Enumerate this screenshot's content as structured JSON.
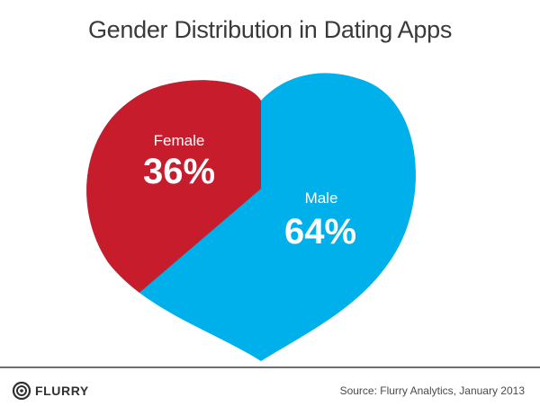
{
  "title": "Gender Distribution in Dating Apps",
  "chart_data": {
    "type": "pie",
    "shape": "heart",
    "title": "Gender Distribution in Dating Apps",
    "slices": [
      {
        "label": "Female",
        "value": 36,
        "display": "36%",
        "color": "#c71c2c"
      },
      {
        "label": "Male",
        "value": 64,
        "display": "64%",
        "color": "#00b0ea"
      }
    ]
  },
  "footer": {
    "logo_text": "FLURRY",
    "source": "Source: Flurry Analytics, January 2013"
  },
  "colors": {
    "title": "#3a3a3a",
    "female": "#c71c2c",
    "male": "#00b0ea",
    "rule": "#6e6e6e"
  }
}
